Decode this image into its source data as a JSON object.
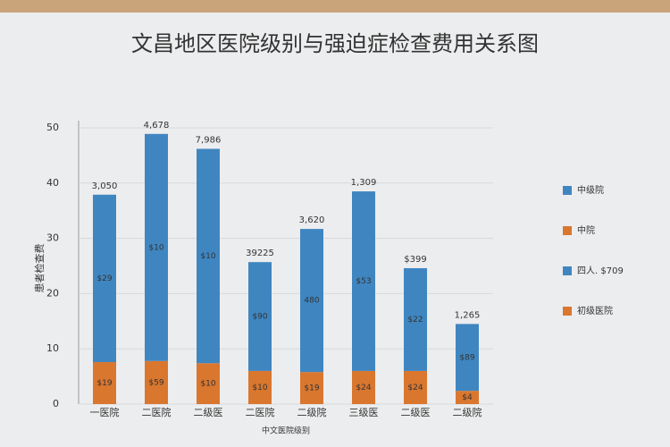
{
  "chart_data": {
    "type": "stacked_bar",
    "title": "文昌地区医院级别与强迫症检查费用关系图",
    "y_label": "患者检查费",
    "x_label": "中文医院级别",
    "categories": [
      "一医院",
      "二医院",
      "二级医",
      "二医院",
      "二级院",
      "三级医",
      "二级医",
      "二级院"
    ],
    "series": [
      {
        "name": "中院",
        "color": "#d9772f",
        "values": [
          7.6,
          7.8,
          7.4,
          6.0,
          5.8,
          6.0,
          6.0,
          2.4
        ]
      },
      {
        "name": "中级院",
        "color": "#3f86c1",
        "values": [
          30.3,
          41.1,
          38.8,
          19.7,
          25.9,
          32.5,
          18.6,
          12.1
        ]
      }
    ],
    "legend_more": [
      {
        "name": "四人. $709",
        "color": "#3f86c1"
      },
      {
        "name": "初级医院",
        "color": "#d9772f"
      }
    ],
    "top_labels": [
      "3,050",
      "4,678",
      "7,986",
      "39225",
      "3,620",
      "1,309",
      "$399",
      "1,265"
    ],
    "segment_labels": [
      [
        "$19",
        "$59",
        "$10",
        "$10",
        "$19",
        "$24",
        "$24",
        "$4"
      ],
      [
        "$29",
        "$10",
        "$10",
        "$90",
        "480",
        "$53",
        "$22",
        "$89"
      ]
    ],
    "ylim": [
      0,
      50
    ],
    "yticks": [
      0,
      10,
      20,
      30,
      40,
      50
    ],
    "grid": true
  }
}
